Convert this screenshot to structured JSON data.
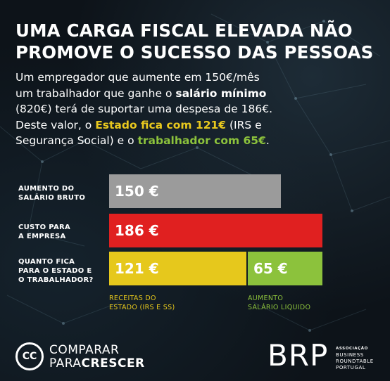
{
  "title_line1": "UMA CARGA FISCAL ELEVADA NÃO",
  "title_line2": "PROMOVE O SUCESSO DAS PESSOAS",
  "paragraph": {
    "l1": "Um empregador que aumente em 150€/mês",
    "l2a": "um trabalhador que ganhe o ",
    "l2b": "salário mínimo",
    "l3": "(820€) terá de suportar uma despesa de 186€.",
    "l4a": "Deste valor, o ",
    "l4b": "Estado fica com 121€",
    "l4c": " (IRS e",
    "l5a": "Segurança Social) e o ",
    "l5b": "trabalhador com 65€",
    "l5c": "."
  },
  "rows": [
    {
      "label_l1": "AUMENTO DO",
      "label_l2": "SALÁRIO BRUTO",
      "label_l3": ""
    },
    {
      "label_l1": "CUSTO PARA",
      "label_l2": "A EMPRESA",
      "label_l3": ""
    },
    {
      "label_l1": "QUANTO FICA",
      "label_l2": "PARA O ESTADO E",
      "label_l3": "O TRABALHADOR?"
    }
  ],
  "chart_data": {
    "type": "bar",
    "orientation": "horizontal",
    "unit": "€",
    "categories": [
      "AUMENTO DO SALÁRIO BRUTO",
      "CUSTO PARA A EMPRESA",
      "QUANTO FICA PARA O ESTADO E O TRABALHADOR?"
    ],
    "bars": [
      {
        "row": 0,
        "segments": [
          {
            "value": 150,
            "label": "150 €",
            "color": "#9b9b9b",
            "sublabel": ""
          }
        ]
      },
      {
        "row": 1,
        "segments": [
          {
            "value": 186,
            "label": "186 €",
            "color": "#e02020",
            "sublabel": ""
          }
        ]
      },
      {
        "row": 2,
        "segments": [
          {
            "value": 121,
            "label": "121 €",
            "color": "#e6c81c",
            "sublabel_l1": "RECEITAS DO",
            "sublabel_l2": "ESTADO (IRS E SS)",
            "sublabel_color": "#e6c81c"
          },
          {
            "value": 65,
            "label": "65 €",
            "color": "#8cc23c",
            "sublabel_l1": "AUMENTO",
            "sublabel_l2": "SALÁRIO LIQUIDO",
            "sublabel_color": "#8cc23c"
          }
        ]
      }
    ]
  },
  "logos": {
    "cc_mark": "CC",
    "cc_line1": "COMPARAR",
    "cc_line2a": "PARA",
    "cc_line2b": "CRESCER",
    "brp_big": "BRP",
    "brp_assoc": "ASSOCIAÇÃO",
    "brp_l1": "BUSINESS",
    "brp_l2": "ROUNDTABLE",
    "brp_l3": "PORTUGAL"
  }
}
